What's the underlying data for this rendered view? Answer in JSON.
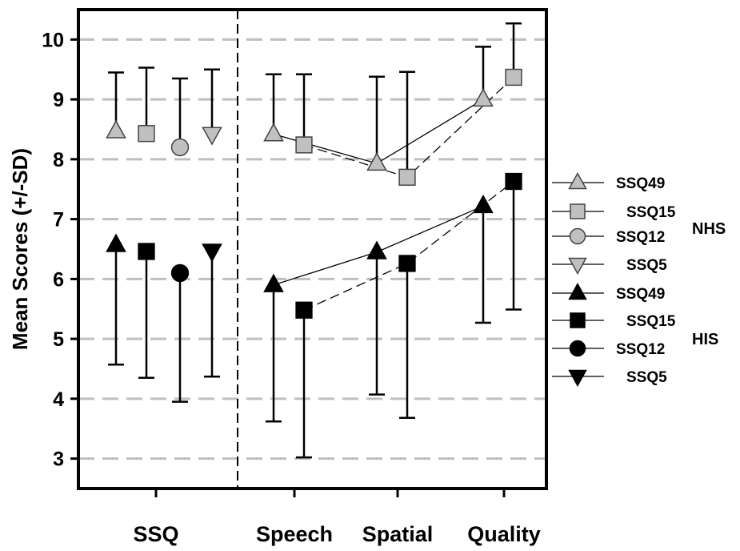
{
  "chart_data": {
    "type": "scatter",
    "ylabel": "Mean Scores (+/-SD)",
    "ylim": [
      2.5,
      10.5
    ],
    "yticks": [
      3,
      4,
      5,
      6,
      7,
      8,
      9,
      10
    ],
    "grid": "horizontal dashed",
    "categories": [
      "SSQ",
      "Speech",
      "Spatial",
      "Quality"
    ],
    "groups": [
      {
        "label": "NHS",
        "fill": "#c0c0c0",
        "series": [
          {
            "name": "SSQ49",
            "marker": "triangle-up",
            "points": [
              {
                "x": "SSQ",
                "y": 8.47,
                "sd_low": 8.47,
                "sd_high": 9.45
              },
              {
                "x": "Speech",
                "y": 8.42,
                "sd_low": 8.42,
                "sd_high": 9.42
              },
              {
                "x": "Spatial",
                "y": 7.93,
                "sd_low": 7.93,
                "sd_high": 9.38
              },
              {
                "x": "Quality",
                "y": 9.0,
                "sd_low": 9.0,
                "sd_high": 9.88
              }
            ]
          },
          {
            "name": "SSQ15",
            "marker": "square",
            "points": [
              {
                "x": "SSQ",
                "y": 8.43,
                "sd_low": 8.43,
                "sd_high": 9.53
              },
              {
                "x": "Speech",
                "y": 8.24,
                "sd_low": 8.24,
                "sd_high": 9.42
              },
              {
                "x": "Spatial",
                "y": 7.7,
                "sd_low": 7.7,
                "sd_high": 9.46
              },
              {
                "x": "Quality",
                "y": 9.37,
                "sd_low": 9.37,
                "sd_high": 10.27
              }
            ]
          },
          {
            "name": "SSQ12",
            "marker": "circle",
            "points": [
              {
                "x": "SSQ",
                "y": 8.2,
                "sd_low": 8.2,
                "sd_high": 9.35
              }
            ]
          },
          {
            "name": "SSQ5",
            "marker": "triangle-down",
            "points": [
              {
                "x": "SSQ",
                "y": 8.42,
                "sd_low": 8.42,
                "sd_high": 9.5
              }
            ]
          }
        ]
      },
      {
        "label": "HIS",
        "fill": "#000000",
        "series": [
          {
            "name": "SSQ49",
            "marker": "triangle-up",
            "points": [
              {
                "x": "SSQ",
                "y": 6.57,
                "sd_low": 4.57,
                "sd_high": 6.57
              },
              {
                "x": "Speech",
                "y": 5.9,
                "sd_low": 3.62,
                "sd_high": 5.9
              },
              {
                "x": "Spatial",
                "y": 6.45,
                "sd_low": 4.07,
                "sd_high": 6.45
              },
              {
                "x": "Quality",
                "y": 7.22,
                "sd_low": 5.27,
                "sd_high": 7.22
              }
            ]
          },
          {
            "name": "SSQ15",
            "marker": "square",
            "points": [
              {
                "x": "SSQ",
                "y": 6.46,
                "sd_low": 4.35,
                "sd_high": 6.46
              },
              {
                "x": "Speech",
                "y": 5.48,
                "sd_low": 3.02,
                "sd_high": 5.48
              },
              {
                "x": "Spatial",
                "y": 6.26,
                "sd_low": 3.68,
                "sd_high": 6.26
              },
              {
                "x": "Quality",
                "y": 7.63,
                "sd_low": 5.49,
                "sd_high": 7.63
              }
            ]
          },
          {
            "name": "SSQ12",
            "marker": "circle",
            "points": [
              {
                "x": "SSQ",
                "y": 6.1,
                "sd_low": 3.95,
                "sd_high": 6.1
              }
            ]
          },
          {
            "name": "SSQ5",
            "marker": "triangle-down",
            "points": [
              {
                "x": "SSQ",
                "y": 6.47,
                "sd_low": 4.37,
                "sd_high": 6.47
              }
            ]
          }
        ]
      }
    ],
    "connected": [
      {
        "group": "NHS",
        "series": "SSQ49",
        "line": "solid"
      },
      {
        "group": "NHS",
        "series": "SSQ15",
        "line": "dashed"
      },
      {
        "group": "HIS",
        "series": "SSQ49",
        "line": "solid"
      },
      {
        "group": "HIS",
        "series": "SSQ15",
        "line": "dashed"
      }
    ],
    "legend": {
      "placement": "right",
      "entries": [
        {
          "label": "SSQ49",
          "group": "NHS",
          "marker": "triangle-up"
        },
        {
          "label": "SSQ15",
          "group": "NHS",
          "marker": "square"
        },
        {
          "label": "SSQ12",
          "group": "NHS",
          "marker": "circle"
        },
        {
          "label": "SSQ5",
          "group": "NHS",
          "marker": "triangle-down"
        },
        {
          "label": "SSQ49",
          "group": "HIS",
          "marker": "triangle-up"
        },
        {
          "label": "SSQ15",
          "group": "HIS",
          "marker": "square"
        },
        {
          "label": "SSQ12",
          "group": "HIS",
          "marker": "circle"
        },
        {
          "label": "SSQ5",
          "group": "HIS",
          "marker": "triangle-down"
        }
      ],
      "group_labels": [
        "NHS",
        "HIS"
      ]
    }
  }
}
